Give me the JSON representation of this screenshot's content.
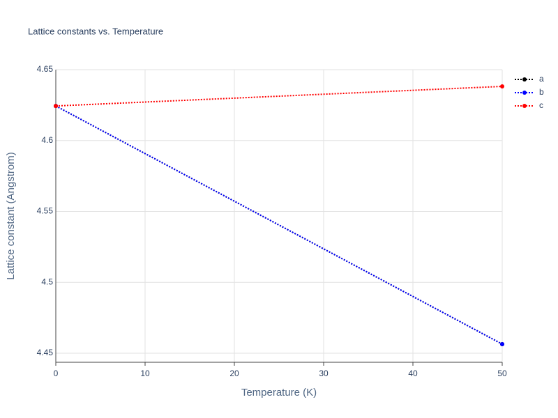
{
  "chart_data": {
    "type": "line",
    "title": "Lattice constants vs. Temperature",
    "x_label": "Temperature (K)",
    "y_label": "Lattice constant (Angstrom)",
    "x": [
      0,
      50
    ],
    "series": [
      {
        "name": "a",
        "color": "#000000",
        "values": [
          4.6244,
          4.4564
        ]
      },
      {
        "name": "b",
        "color": "#0000ff",
        "values": [
          4.6244,
          4.4564
        ]
      },
      {
        "name": "c",
        "color": "#ff0000",
        "values": [
          4.6244,
          4.6382
        ]
      }
    ],
    "xlim": [
      0,
      50
    ],
    "xticks": [
      0,
      10,
      20,
      30,
      40,
      50
    ],
    "ylim": [
      4.4436,
      4.65
    ],
    "yticks": [
      4.45,
      4.5,
      4.55,
      4.6,
      4.65
    ],
    "grid": true,
    "legend": "top-right",
    "line_style": "dotted"
  }
}
